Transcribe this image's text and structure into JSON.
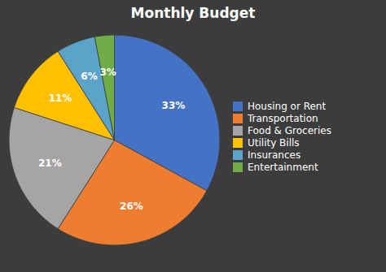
{
  "chart_data": {
    "type": "pie",
    "title": "Monthly Budget",
    "categories": [
      "Housing or Rent",
      "Transportation",
      "Food & Groceries",
      "Utility Bills",
      "Insurances",
      "Entertainment"
    ],
    "values": [
      33,
      26,
      21,
      11,
      6,
      3
    ],
    "value_labels": [
      "33%",
      "26%",
      "21%",
      "11%",
      "6%",
      "3%"
    ],
    "colors": [
      "#4472C4",
      "#ED7D31",
      "#A5A5A5",
      "#FFC000",
      "#5BA3C9",
      "#70AD47"
    ],
    "data_labels": true,
    "legend": "right"
  }
}
